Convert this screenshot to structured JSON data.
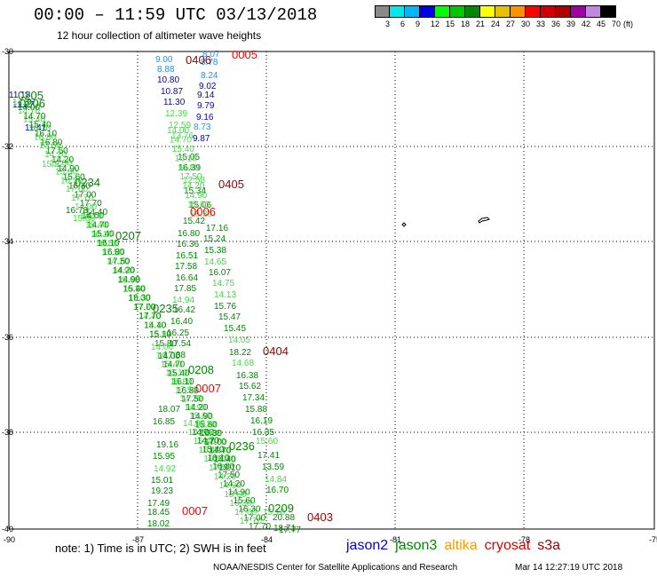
{
  "header": {
    "title": "00:00 – 11:59 UTC 03/13/2018",
    "subtitle": "12 hour collection of altimeter wave heights"
  },
  "legend": {
    "colors": [
      "#8a8a8a",
      "#00e8e8",
      "#00b8f8",
      "#0000e8",
      "#00ff00",
      "#00c800",
      "#008800",
      "#ffff00",
      "#e8c000",
      "#ff9000",
      "#ff0000",
      "#d00000",
      "#b00000",
      "#a000a0",
      "#c088e0",
      "#000000"
    ],
    "labels": [
      "3",
      "6",
      "9",
      "12",
      "15",
      "18",
      "21",
      "24",
      "27",
      "30",
      "33",
      "36",
      "39",
      "42",
      "45",
      "70",
      "(ft)"
    ]
  },
  "axes": {
    "lat_labels": [
      "-30",
      "-32",
      "-34",
      "-36",
      "-38",
      "-40"
    ],
    "lon_labels": [
      "-90",
      "-87",
      "-84",
      "-81",
      "-78",
      "-75"
    ]
  },
  "passes": [
    {
      "label": "0005",
      "color": "#ff0000"
    },
    {
      "label": "0406",
      "color": "#990000"
    },
    {
      "label": "0205",
      "color": "#008800"
    },
    {
      "label": "0206",
      "color": "#008800"
    },
    {
      "label": "0234",
      "color": "#008800"
    },
    {
      "label": "0405",
      "color": "#990000"
    },
    {
      "label": "0006",
      "color": "#ff0000"
    },
    {
      "label": "0207",
      "color": "#008800"
    },
    {
      "label": "0235",
      "color": "#008800"
    },
    {
      "label": "0404",
      "color": "#990000"
    },
    {
      "label": "0208",
      "color": "#008800"
    },
    {
      "label": "0007",
      "color": "#ff0000"
    },
    {
      "label": "0236",
      "color": "#008800"
    },
    {
      "label": "0007",
      "color": "#ff0000"
    },
    {
      "label": "0209",
      "color": "#008800"
    },
    {
      "label": "0403",
      "color": "#990000"
    }
  ],
  "wave_values": [
    {
      "v": "8.07",
      "c": "#1e90ff"
    },
    {
      "v": "8.78",
      "c": "#1e90ff"
    },
    {
      "v": "9.00",
      "c": "#1e90ff"
    },
    {
      "v": "8.88",
      "c": "#1e90ff"
    },
    {
      "v": "8.24",
      "c": "#1e90ff"
    },
    {
      "v": "10.80",
      "c": "#0000cc"
    },
    {
      "v": "9.02",
      "c": "#0000cc"
    },
    {
      "v": "10.87",
      "c": "#0000cc"
    },
    {
      "v": "9.14",
      "c": "#0000cc"
    },
    {
      "v": "11.30",
      "c": "#0000cc"
    },
    {
      "v": "9.79",
      "c": "#0000cc"
    },
    {
      "v": "12.39",
      "c": "#44dd44"
    },
    {
      "v": "9.16",
      "c": "#0000cc"
    },
    {
      "v": "12.59",
      "c": "#44dd44"
    },
    {
      "v": "8.73",
      "c": "#1e90ff"
    },
    {
      "v": "13.76",
      "c": "#44dd44"
    },
    {
      "v": "9.87",
      "c": "#0000cc"
    },
    {
      "v": "11.18",
      "c": "#0000cc"
    },
    {
      "v": "11.27",
      "c": "#0000cc"
    },
    {
      "v": "11.41",
      "c": "#0000cc"
    },
    {
      "v": "15.05",
      "c": "#008800"
    },
    {
      "v": "16.39",
      "c": "#008800"
    },
    {
      "v": "15.22",
      "c": "#44dd44"
    },
    {
      "v": "12.58",
      "c": "#44dd44"
    },
    {
      "v": "15.34",
      "c": "#008800"
    },
    {
      "v": "15.06",
      "c": "#008800"
    },
    {
      "v": "16.78",
      "c": "#008800"
    },
    {
      "v": "15.86",
      "c": "#44dd44"
    },
    {
      "v": "15.42",
      "c": "#008800"
    },
    {
      "v": "16.80",
      "c": "#008800"
    },
    {
      "v": "17.16",
      "c": "#008800"
    },
    {
      "v": "16.36",
      "c": "#008800"
    },
    {
      "v": "15.24",
      "c": "#008800"
    },
    {
      "v": "16.51",
      "c": "#008800"
    },
    {
      "v": "15.38",
      "c": "#008800"
    },
    {
      "v": "14.65",
      "c": "#44dd44"
    },
    {
      "v": "17.58",
      "c": "#008800"
    },
    {
      "v": "16.07",
      "c": "#008800"
    },
    {
      "v": "16.64",
      "c": "#008800"
    },
    {
      "v": "14.75",
      "c": "#44dd44"
    },
    {
      "v": "17.85",
      "c": "#008800"
    },
    {
      "v": "14.13",
      "c": "#44dd44"
    },
    {
      "v": "14.94",
      "c": "#44dd44"
    },
    {
      "v": "15.76",
      "c": "#008800"
    },
    {
      "v": "16.42",
      "c": "#008800"
    },
    {
      "v": "15.47",
      "c": "#008800"
    },
    {
      "v": "16.40",
      "c": "#008800"
    },
    {
      "v": "15.45",
      "c": "#008800"
    },
    {
      "v": "16.25",
      "c": "#008800"
    },
    {
      "v": "14.05",
      "c": "#44dd44"
    },
    {
      "v": "17.54",
      "c": "#008800"
    },
    {
      "v": "18.22",
      "c": "#008800"
    },
    {
      "v": "17.38",
      "c": "#008800"
    },
    {
      "v": "14.68",
      "c": "#44dd44"
    },
    {
      "v": "16.38",
      "c": "#008800"
    },
    {
      "v": "15.62",
      "c": "#008800"
    },
    {
      "v": "17.34",
      "c": "#008800"
    },
    {
      "v": "15.88",
      "c": "#008800"
    },
    {
      "v": "18.07",
      "c": "#008800"
    },
    {
      "v": "16.19",
      "c": "#008800"
    },
    {
      "v": "16.85",
      "c": "#008800"
    },
    {
      "v": "16.35",
      "c": "#008800"
    },
    {
      "v": "19.16",
      "c": "#008800"
    },
    {
      "v": "15.60",
      "c": "#44dd44"
    },
    {
      "v": "15.95",
      "c": "#008800"
    },
    {
      "v": "17.41",
      "c": "#008800"
    },
    {
      "v": "14.92",
      "c": "#44dd44"
    },
    {
      "v": "13.59",
      "c": "#008800"
    },
    {
      "v": "15.01",
      "c": "#008800"
    },
    {
      "v": "14.84",
      "c": "#44dd44"
    },
    {
      "v": "19.23",
      "c": "#008800"
    },
    {
      "v": "16.70",
      "c": "#008800"
    },
    {
      "v": "17.49",
      "c": "#008800"
    },
    {
      "v": "18.45",
      "c": "#008800"
    },
    {
      "v": "18.02",
      "c": "#008800"
    },
    {
      "v": "20.88",
      "c": "#008800"
    },
    {
      "v": "18.71",
      "c": "#008800"
    },
    {
      "v": "17.77",
      "c": "#008800"
    },
    {
      "v": "15.10",
      "c": "#44dd44"
    }
  ],
  "footer": {
    "note": "note: 1) Time is in UTC; 2) SWH is in feet",
    "satellites": [
      {
        "name": "jason2",
        "color": "#0000dd"
      },
      {
        "name": "jason3",
        "color": "#008800"
      },
      {
        "name": "altika",
        "color": "#ff9900"
      },
      {
        "name": "cryosat",
        "color": "#dd0000"
      },
      {
        "name": "s3a",
        "color": "#990000"
      }
    ],
    "credit": "NOAA/NESDIS Center for Satellite Applications and Research",
    "stamp": "Mar 14 12:27:19 UTC 2018"
  }
}
